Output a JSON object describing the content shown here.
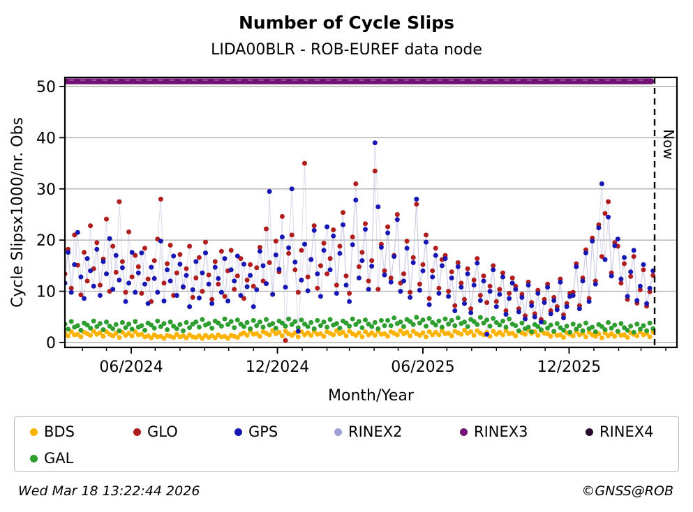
{
  "footer": {
    "timestamp": "Wed Mar 18 13:22:44 2026",
    "copyright": "©GNSS@ROB"
  },
  "legend": {
    "items": [
      {
        "label": "BDS",
        "color": "#ffb300"
      },
      {
        "label": "GLO",
        "color": "#b01d1d"
      },
      {
        "label": "GPS",
        "color": "#1717b4"
      },
      {
        "label": "RINEX2",
        "color": "#a0a0d8"
      },
      {
        "label": "RINEX3",
        "color": "#721277"
      },
      {
        "label": "RINEX4",
        "color": "#2a0a30"
      },
      {
        "label": "GAL",
        "color": "#2e9e30"
      }
    ]
  },
  "chart_data": {
    "type": "scatter",
    "title": "Number of Cycle Slips",
    "subtitle": "LIDA00BLR - ROB-EUREF data node",
    "xlabel": "Month/Year",
    "ylabel": "Cycle Slipsx1000/nr. Obs",
    "x_unit": "days since 2024-03-10",
    "xlim": [
      0,
      766
    ],
    "ylim": [
      -1,
      51.8
    ],
    "grid": true,
    "grid_color": "#b0b0b0",
    "faint_line_color": "rgba(176,176,216,0.45)",
    "y_ticks": [
      0,
      10,
      20,
      30,
      40,
      50
    ],
    "x_ticks": [
      {
        "day": 83,
        "label": "06/2024"
      },
      {
        "day": 266,
        "label": "12/2024"
      },
      {
        "day": 448,
        "label": "06/2025"
      },
      {
        "day": 631,
        "label": "12/2025"
      }
    ],
    "minor_tick_days": [
      22,
      52,
      83,
      113,
      144,
      175,
      205,
      236,
      266,
      297,
      328,
      356,
      387,
      417,
      448,
      478,
      509,
      540,
      570,
      601,
      631,
      662,
      693,
      721,
      752
    ],
    "now_marker": {
      "day": 738,
      "label": "Now"
    },
    "legend_position": "bottom",
    "series": [
      {
        "name": "BDS",
        "color": "#ffb300",
        "step_days": 4,
        "values": [
          1.8,
          1.3,
          2.1,
          1.5,
          1.6,
          1.1,
          2.0,
          1.7,
          1.4,
          2.2,
          1.6,
          1.9,
          1.2,
          2.1,
          1.6,
          1.3,
          1.8,
          1.0,
          2.0,
          1.4,
          1.8,
          1.3,
          2.1,
          1.5,
          1.6,
          1.1,
          1.3,
          0.9,
          1.5,
          1.1,
          1.2,
          0.8,
          1.4,
          1.2,
          1.0,
          1.6,
          1.1,
          1.3,
          0.9,
          1.5,
          1.1,
          1.0,
          1.3,
          0.8,
          1.4,
          1.0,
          1.3,
          0.9,
          1.5,
          1.1,
          1.2,
          0.8,
          1.4,
          1.2,
          1.0,
          1.6,
          1.9,
          1.4,
          2.2,
          1.6,
          1.7,
          1.2,
          2.1,
          1.8,
          1.5,
          2.3,
          1.7,
          2.0,
          1.3,
          2.2,
          1.7,
          1.4,
          1.9,
          1.1,
          2.1,
          1.5,
          1.9,
          1.4,
          2.2,
          1.6,
          1.7,
          1.2,
          2.1,
          1.8,
          1.5,
          2.3,
          1.7,
          2.0,
          1.3,
          2.2,
          1.7,
          1.4,
          1.9,
          1.1,
          2.1,
          1.5,
          1.9,
          1.4,
          2.2,
          1.6,
          1.7,
          1.2,
          2.1,
          1.8,
          1.5,
          2.3,
          1.7,
          2.0,
          1.3,
          2.2,
          1.7,
          1.4,
          1.9,
          1.1,
          2.1,
          1.5,
          2.0,
          1.5,
          2.3,
          1.7,
          1.8,
          1.3,
          2.2,
          1.9,
          1.6,
          2.4,
          1.8,
          2.1,
          1.4,
          2.3,
          1.8,
          1.5,
          2.0,
          1.2,
          2.2,
          1.6,
          2.0,
          1.5,
          2.3,
          1.7,
          1.8,
          1.3,
          2.2,
          1.9,
          1.6,
          2.4,
          1.8,
          2.1,
          1.4,
          2.3,
          1.8,
          1.7,
          1.2,
          2.0,
          1.4,
          1.5,
          1.0,
          1.9,
          1.6,
          1.3,
          2.1,
          1.5,
          1.8,
          1.1,
          2.0,
          1.5,
          1.2,
          1.7,
          0.9,
          1.9,
          1.3,
          1.7,
          1.2,
          2.0,
          1.4,
          1.5,
          1.0,
          1.9,
          1.6,
          1.3,
          2.1,
          1.5,
          1.8,
          1.1,
          2.0
        ]
      },
      {
        "name": "GAL",
        "color": "#2e9e30",
        "step_days": 4,
        "values": [
          3.6,
          2.6,
          4.1,
          3.0,
          3.3,
          2.4,
          3.8,
          3.4,
          2.8,
          4.2,
          3.1,
          3.7,
          2.5,
          4.0,
          3.2,
          2.7,
          3.5,
          2.3,
          3.9,
          2.9,
          3.6,
          2.6,
          4.1,
          3.0,
          3.3,
          2.4,
          3.8,
          3.4,
          2.8,
          4.2,
          3.1,
          3.7,
          2.5,
          4.0,
          3.2,
          2.7,
          3.5,
          2.3,
          3.9,
          2.9,
          3.6,
          4.0,
          3.0,
          4.5,
          3.4,
          3.7,
          2.8,
          4.2,
          3.8,
          3.2,
          4.6,
          3.5,
          4.1,
          2.9,
          4.4,
          3.6,
          3.1,
          3.9,
          2.7,
          4.3,
          3.3,
          4.0,
          3.0,
          4.5,
          3.4,
          3.7,
          2.8,
          4.2,
          3.8,
          3.2,
          4.6,
          3.5,
          4.1,
          2.9,
          4.4,
          3.6,
          3.1,
          3.9,
          2.7,
          4.3,
          3.3,
          4.0,
          3.0,
          4.5,
          3.4,
          3.7,
          2.8,
          4.2,
          3.8,
          3.2,
          4.6,
          3.5,
          4.1,
          2.9,
          4.4,
          3.6,
          3.1,
          3.9,
          2.7,
          4.3,
          3.3,
          4.3,
          3.3,
          4.8,
          3.7,
          4.0,
          3.1,
          4.5,
          4.1,
          3.5,
          4.9,
          3.8,
          4.4,
          3.2,
          4.7,
          3.9,
          3.4,
          4.2,
          3.0,
          4.6,
          3.6,
          4.3,
          3.3,
          4.8,
          3.7,
          4.0,
          3.1,
          4.5,
          4.1,
          3.5,
          4.9,
          3.8,
          4.4,
          3.2,
          4.7,
          3.9,
          3.4,
          4.2,
          3.0,
          4.6,
          3.6,
          3.3,
          2.3,
          3.8,
          2.7,
          3.0,
          2.1,
          3.5,
          3.1,
          2.5,
          3.9,
          2.8,
          3.4,
          2.2,
          3.7,
          2.9,
          2.4,
          3.2,
          2.0,
          3.6,
          2.6,
          3.3,
          2.3,
          3.8,
          2.7,
          3.0,
          2.1,
          3.5,
          3.1,
          2.5,
          3.9,
          2.8,
          3.4,
          2.2,
          3.7,
          2.9,
          2.4,
          3.2,
          2.0,
          3.6,
          2.6,
          3.3,
          2.3,
          3.8,
          2.7
        ]
      },
      {
        "name": "GLO",
        "color": "#b01d1d",
        "step_days": 4,
        "values": [
          13.4,
          18.2,
          10.6,
          21.0,
          15.1,
          9.3,
          17.6,
          12.0,
          22.8,
          14.4,
          19.5,
          11.2,
          16.3,
          24.1,
          10.0,
          18.8,
          13.7,
          27.5,
          15.8,
          9.8,
          21.6,
          12.8,
          17.0,
          14.8,
          9.6,
          18.4,
          12.4,
          8.0,
          16.0,
          20.2,
          28.0,
          11.6,
          15.4,
          19.0,
          9.2,
          13.6,
          17.2,
          10.8,
          14.4,
          18.8,
          8.8,
          12.6,
          16.6,
          10.0,
          19.6,
          13.2,
          8.4,
          15.8,
          11.4,
          17.8,
          9.0,
          14.0,
          18.0,
          10.4,
          13.0,
          16.4,
          8.6,
          12.2,
          15.2,
          11.0,
          14.6,
          18.6,
          12.0,
          22.2,
          15.6,
          9.4,
          19.8,
          13.8,
          24.6,
          0.4,
          17.4,
          21.0,
          14.2,
          9.8,
          18.0,
          35.0,
          12.8,
          16.2,
          22.8,
          10.6,
          15.0,
          19.4,
          13.4,
          16.4,
          22.0,
          11.2,
          18.8,
          25.4,
          13.0,
          9.6,
          20.6,
          31.0,
          14.8,
          17.6,
          23.2,
          12.0,
          16.0,
          33.5,
          10.4,
          19.2,
          14.0,
          22.6,
          12.6,
          17.0,
          25.0,
          11.6,
          13.4,
          19.8,
          9.8,
          16.6,
          27.0,
          11.4,
          15.2,
          21.0,
          8.6,
          14.0,
          18.4,
          10.6,
          16.2,
          17.0,
          10.0,
          13.8,
          7.2,
          15.6,
          11.6,
          8.4,
          14.4,
          6.6,
          12.2,
          16.4,
          9.2,
          13.0,
          7.8,
          11.0,
          15.0,
          8.0,
          10.4,
          13.6,
          6.2,
          9.6,
          12.6,
          11.0,
          6.6,
          9.4,
          5.2,
          11.8,
          7.8,
          5.6,
          10.2,
          4.5,
          8.4,
          11.4,
          6.2,
          8.8,
          7.0,
          12.4,
          5.4,
          7.6,
          9.6,
          9.8,
          15.4,
          7.2,
          12.6,
          18.1,
          8.6,
          20.4,
          12.0,
          23.0,
          16.8,
          25.2,
          27.5,
          13.6,
          19.5,
          18.8,
          11.6,
          15.4,
          8.4,
          12.9,
          16.8,
          7.7,
          10.3,
          14.2,
          7.1,
          9.9,
          13.1
        ]
      },
      {
        "name": "GPS",
        "color": "#1717b4",
        "step_days": 4,
        "values": [
          11.6,
          17.6,
          9.8,
          15.2,
          21.5,
          12.8,
          8.6,
          16.4,
          14.0,
          11.0,
          18.2,
          9.2,
          15.8,
          13.4,
          20.3,
          10.4,
          17.0,
          12.2,
          14.6,
          8.0,
          11.6,
          17.6,
          9.8,
          13.6,
          17.5,
          11.4,
          7.6,
          14.7,
          12.5,
          9.8,
          19.8,
          8.1,
          14.2,
          12.0,
          16.9,
          9.2,
          15.3,
          10.9,
          13.1,
          7.0,
          10.3,
          15.8,
          8.7,
          13.6,
          17.5,
          11.4,
          7.6,
          14.7,
          12.5,
          9.8,
          16.4,
          8.1,
          14.2,
          12.0,
          16.9,
          9.2,
          15.3,
          10.9,
          13.1,
          7.0,
          10.3,
          17.8,
          15.0,
          11.5,
          29.5,
          9.4,
          17.1,
          14.3,
          20.6,
          10.8,
          18.5,
          30.0,
          15.7,
          2.2,
          12.2,
          19.2,
          10.1,
          16.2,
          21.9,
          13.4,
          9.0,
          18.0,
          22.6,
          14.2,
          20.8,
          9.6,
          17.4,
          23.0,
          11.2,
          8.0,
          19.1,
          27.8,
          12.6,
          16.0,
          22.1,
          10.4,
          14.9,
          39.0,
          26.5,
          18.6,
          13.2,
          21.4,
          11.8,
          16.8,
          24.0,
          10.0,
          12.0,
          18.4,
          8.8,
          15.6,
          28.0,
          10.2,
          14.0,
          19.6,
          7.4,
          12.8,
          17.0,
          9.6,
          15.0,
          16.4,
          9.0,
          12.6,
          6.2,
          14.8,
          10.8,
          7.6,
          13.4,
          5.8,
          11.2,
          15.5,
          8.2,
          12.0,
          1.6,
          10.0,
          14.2,
          7.0,
          9.4,
          12.8,
          5.5,
          8.6,
          11.6,
          10.4,
          6.0,
          8.8,
          4.6,
          11.2,
          7.2,
          5.0,
          9.6,
          4.0,
          7.8,
          10.8,
          5.6,
          8.2,
          6.4,
          11.8,
          4.8,
          7.0,
          9.0,
          9.2,
          14.8,
          6.6,
          12.0,
          17.5,
          8.0,
          19.8,
          11.4,
          22.4,
          31.0,
          16.2,
          24.5,
          13.0,
          18.9,
          20.2,
          12.4,
          16.6,
          9.0,
          13.8,
          18.0,
          8.2,
          11.0,
          15.2,
          7.6,
          10.6,
          14.0
        ]
      },
      {
        "name": "RINEX2",
        "color": "#a0a0d8",
        "values": []
      },
      {
        "name": "RINEX3",
        "color": "#721277",
        "constant_value": 51,
        "from_day": 0,
        "to_day": 738
      },
      {
        "name": "RINEX4",
        "color": "#2a0a30",
        "values": []
      }
    ]
  }
}
